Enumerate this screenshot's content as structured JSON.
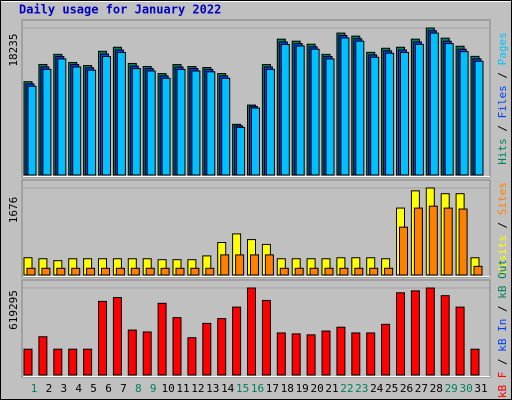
{
  "chart_data": {
    "type": "bar",
    "title": "Daily usage for January 2022",
    "categories": [
      1,
      2,
      3,
      4,
      5,
      6,
      7,
      8,
      9,
      10,
      11,
      12,
      13,
      14,
      15,
      16,
      17,
      18,
      19,
      20,
      21,
      22,
      23,
      24,
      25,
      26,
      27,
      28,
      29,
      30,
      31
    ],
    "highlight_color": "#00805c",
    "highlighted": [
      1,
      8,
      9,
      15,
      16,
      22,
      23,
      29,
      30
    ],
    "panels": [
      {
        "ylim": [
          0,
          18235
        ],
        "yticks": [
          18235
        ],
        "series": [
          {
            "name": "Hits",
            "color": "#00805c",
            "values": [
              11570,
              13708,
              14965,
              13959,
              13582,
              15343,
              15846,
              13834,
              13456,
              12576,
              13708,
              13456,
              13331,
              12576,
              6288,
              8677,
              13708,
              16852,
              16600,
              16223,
              14965,
              17606,
              17229,
              15217,
              15720,
              15846,
              16852,
              18235,
              16977,
              15971,
              14714
            ]
          },
          {
            "name": "Files",
            "color": "#0040ff",
            "values": [
              11300,
              13400,
              14700,
              13700,
              13300,
              15000,
              15500,
              13500,
              13200,
              12300,
              13400,
              13200,
              13100,
              12300,
              6100,
              8500,
              13400,
              16500,
              16300,
              15900,
              14700,
              17300,
              16900,
              14900,
              15400,
              15500,
              16500,
              17900,
              16600,
              15600,
              14400
            ]
          },
          {
            "name": "Pages",
            "color": "#00c0ff",
            "values": [
              11000,
              13100,
              14400,
              13400,
              13000,
              14700,
              15200,
              13200,
              12900,
              12000,
              13100,
              12900,
              12800,
              12000,
              5900,
              8300,
              13100,
              16200,
              16000,
              15600,
              14400,
              17000,
              16600,
              14600,
              15100,
              15200,
              16200,
              17600,
              16300,
              15300,
              14100
            ]
          }
        ]
      },
      {
        "ylim": [
          0,
          1676
        ],
        "yticks": [
          1676
        ],
        "series": [
          {
            "name": "Visits",
            "color": "#ffff00",
            "values": [
              332,
              313,
              276,
              313,
              313,
              313,
              313,
              313,
              313,
              295,
              295,
              295,
              368,
              626,
              792,
              682,
              589,
              313,
              313,
              313,
              313,
              332,
              332,
              332,
              313,
              1289,
              1621,
              1676,
              1566,
              1566,
              332
            ]
          },
          {
            "name": "Sites",
            "color": "#ff8000",
            "values": [
              129,
              129,
              129,
              129,
              129,
              129,
              129,
              129,
              129,
              129,
              129,
              129,
              129,
              387,
              387,
              387,
              387,
              129,
              129,
              129,
              129,
              129,
              129,
              129,
              129,
              921,
              1289,
              1326,
              1289,
              1271,
              166
            ]
          }
        ]
      },
      {
        "ylim": [
          0,
          619295
        ],
        "yticks": [
          619295
        ],
        "series": [
          {
            "name": "kB F",
            "color": "#ff0000",
            "values": [
              183735,
              272200,
              183735,
              183735,
              183735,
              523985,
              551205,
              319835,
              306225,
              510375,
              408300,
              265395,
              367470,
              401495,
              483155,
              619295,
              530790,
              299420,
              292615,
              285810,
              313030,
              340250,
              299420,
              299420,
              360665,
              585230,
              598840,
              619295,
              564815,
              483155,
              183735
            ]
          },
          {
            "name": "kB In",
            "color": "#0040ff",
            "values": [
              0,
              0,
              0,
              0,
              0,
              0,
              0,
              0,
              0,
              0,
              0,
              0,
              0,
              0,
              0,
              0,
              0,
              0,
              0,
              0,
              0,
              0,
              0,
              0,
              0,
              0,
              0,
              0,
              0,
              0,
              0
            ]
          },
          {
            "name": "kB Out",
            "color": "#00805c",
            "values": [
              0,
              0,
              0,
              0,
              0,
              0,
              0,
              0,
              0,
              0,
              0,
              0,
              0,
              0,
              0,
              0,
              0,
              0,
              0,
              0,
              0,
              0,
              0,
              0,
              0,
              0,
              0,
              0,
              0,
              0,
              0
            ]
          }
        ]
      }
    ]
  }
}
